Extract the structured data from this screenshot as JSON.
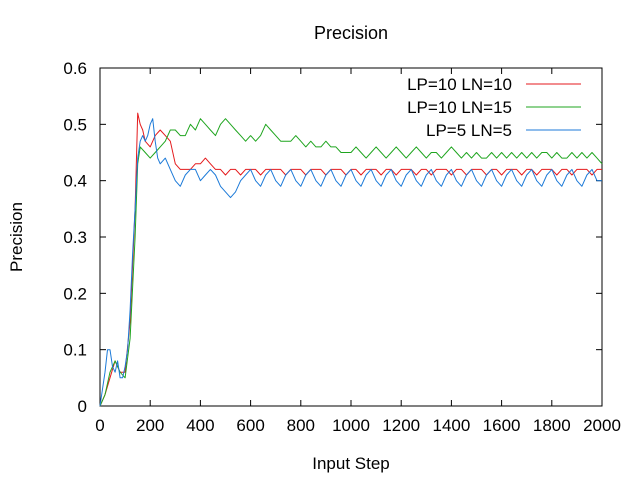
{
  "chart_data": {
    "type": "line",
    "title": "Precision",
    "xlabel": "Input Step",
    "ylabel": "Precision",
    "xlim": [
      0,
      2000
    ],
    "ylim": [
      0,
      0.6
    ],
    "xticks": [
      0,
      200,
      400,
      600,
      800,
      1000,
      1200,
      1400,
      1600,
      1800,
      2000
    ],
    "yticks": [
      0,
      0.1,
      0.2,
      0.3,
      0.4,
      0.5,
      0.6
    ],
    "ytick_labels": [
      "0",
      "0.1",
      "0.2",
      "0.3",
      "0.4",
      "0.5",
      "0.6"
    ],
    "grid": false,
    "legend_position": "top-right",
    "series": [
      {
        "name": "LP=10 LN=10",
        "color": "#e41a1c",
        "points": [
          [
            0,
            0
          ],
          [
            10,
            0.01
          ],
          [
            20,
            0.02
          ],
          [
            40,
            0.05
          ],
          [
            60,
            0.08
          ],
          [
            80,
            0.06
          ],
          [
            100,
            0.06
          ],
          [
            120,
            0.15
          ],
          [
            140,
            0.35
          ],
          [
            150,
            0.52
          ],
          [
            160,
            0.5
          ],
          [
            170,
            0.49
          ],
          [
            180,
            0.47
          ],
          [
            200,
            0.46
          ],
          [
            220,
            0.48
          ],
          [
            240,
            0.49
          ],
          [
            260,
            0.48
          ],
          [
            280,
            0.47
          ],
          [
            300,
            0.43
          ],
          [
            320,
            0.42
          ],
          [
            340,
            0.42
          ],
          [
            360,
            0.42
          ],
          [
            380,
            0.43
          ],
          [
            400,
            0.43
          ],
          [
            420,
            0.44
          ],
          [
            440,
            0.43
          ],
          [
            460,
            0.42
          ],
          [
            480,
            0.42
          ],
          [
            500,
            0.41
          ],
          [
            520,
            0.42
          ],
          [
            540,
            0.42
          ],
          [
            560,
            0.41
          ],
          [
            580,
            0.42
          ],
          [
            600,
            0.42
          ],
          [
            620,
            0.42
          ],
          [
            640,
            0.41
          ],
          [
            660,
            0.42
          ],
          [
            680,
            0.42
          ],
          [
            700,
            0.42
          ],
          [
            720,
            0.42
          ],
          [
            740,
            0.41
          ],
          [
            760,
            0.42
          ],
          [
            780,
            0.42
          ],
          [
            800,
            0.42
          ],
          [
            820,
            0.41
          ],
          [
            840,
            0.42
          ],
          [
            860,
            0.42
          ],
          [
            880,
            0.42
          ],
          [
            900,
            0.41
          ],
          [
            920,
            0.42
          ],
          [
            940,
            0.42
          ],
          [
            960,
            0.42
          ],
          [
            980,
            0.41
          ],
          [
            1000,
            0.42
          ],
          [
            1020,
            0.42
          ],
          [
            1040,
            0.41
          ],
          [
            1060,
            0.42
          ],
          [
            1080,
            0.42
          ],
          [
            1100,
            0.42
          ],
          [
            1120,
            0.41
          ],
          [
            1140,
            0.42
          ],
          [
            1160,
            0.42
          ],
          [
            1180,
            0.41
          ],
          [
            1200,
            0.42
          ],
          [
            1220,
            0.42
          ],
          [
            1240,
            0.42
          ],
          [
            1260,
            0.41
          ],
          [
            1280,
            0.42
          ],
          [
            1300,
            0.42
          ],
          [
            1320,
            0.41
          ],
          [
            1340,
            0.42
          ],
          [
            1360,
            0.42
          ],
          [
            1380,
            0.42
          ],
          [
            1400,
            0.41
          ],
          [
            1420,
            0.42
          ],
          [
            1440,
            0.42
          ],
          [
            1460,
            0.41
          ],
          [
            1480,
            0.42
          ],
          [
            1500,
            0.42
          ],
          [
            1520,
            0.42
          ],
          [
            1540,
            0.41
          ],
          [
            1560,
            0.42
          ],
          [
            1580,
            0.42
          ],
          [
            1600,
            0.41
          ],
          [
            1620,
            0.42
          ],
          [
            1640,
            0.42
          ],
          [
            1660,
            0.42
          ],
          [
            1680,
            0.41
          ],
          [
            1700,
            0.42
          ],
          [
            1720,
            0.42
          ],
          [
            1740,
            0.41
          ],
          [
            1760,
            0.42
          ],
          [
            1780,
            0.42
          ],
          [
            1800,
            0.42
          ],
          [
            1820,
            0.41
          ],
          [
            1840,
            0.42
          ],
          [
            1860,
            0.42
          ],
          [
            1880,
            0.41
          ],
          [
            1900,
            0.42
          ],
          [
            1920,
            0.42
          ],
          [
            1940,
            0.42
          ],
          [
            1960,
            0.41
          ],
          [
            1980,
            0.42
          ],
          [
            2000,
            0.42
          ]
        ]
      },
      {
        "name": "LP=10 LN=15",
        "color": "#1fa51f",
        "points": [
          [
            0,
            0
          ],
          [
            10,
            0.01
          ],
          [
            20,
            0.02
          ],
          [
            40,
            0.06
          ],
          [
            60,
            0.08
          ],
          [
            80,
            0.06
          ],
          [
            100,
            0.05
          ],
          [
            120,
            0.12
          ],
          [
            140,
            0.3
          ],
          [
            150,
            0.43
          ],
          [
            160,
            0.46
          ],
          [
            180,
            0.45
          ],
          [
            200,
            0.44
          ],
          [
            220,
            0.45
          ],
          [
            240,
            0.46
          ],
          [
            260,
            0.47
          ],
          [
            280,
            0.49
          ],
          [
            300,
            0.49
          ],
          [
            320,
            0.48
          ],
          [
            340,
            0.48
          ],
          [
            360,
            0.5
          ],
          [
            380,
            0.49
          ],
          [
            400,
            0.51
          ],
          [
            420,
            0.5
          ],
          [
            440,
            0.49
          ],
          [
            460,
            0.48
          ],
          [
            480,
            0.5
          ],
          [
            500,
            0.51
          ],
          [
            520,
            0.5
          ],
          [
            540,
            0.49
          ],
          [
            560,
            0.48
          ],
          [
            580,
            0.47
          ],
          [
            600,
            0.48
          ],
          [
            620,
            0.47
          ],
          [
            640,
            0.48
          ],
          [
            660,
            0.5
          ],
          [
            680,
            0.49
          ],
          [
            700,
            0.48
          ],
          [
            720,
            0.47
          ],
          [
            740,
            0.47
          ],
          [
            760,
            0.47
          ],
          [
            780,
            0.48
          ],
          [
            800,
            0.47
          ],
          [
            820,
            0.46
          ],
          [
            840,
            0.47
          ],
          [
            860,
            0.46
          ],
          [
            880,
            0.46
          ],
          [
            900,
            0.47
          ],
          [
            920,
            0.46
          ],
          [
            940,
            0.46
          ],
          [
            960,
            0.45
          ],
          [
            980,
            0.45
          ],
          [
            1000,
            0.45
          ],
          [
            1020,
            0.46
          ],
          [
            1040,
            0.45
          ],
          [
            1060,
            0.44
          ],
          [
            1080,
            0.45
          ],
          [
            1100,
            0.46
          ],
          [
            1120,
            0.45
          ],
          [
            1140,
            0.44
          ],
          [
            1160,
            0.45
          ],
          [
            1180,
            0.46
          ],
          [
            1200,
            0.45
          ],
          [
            1220,
            0.44
          ],
          [
            1240,
            0.45
          ],
          [
            1260,
            0.46
          ],
          [
            1280,
            0.45
          ],
          [
            1300,
            0.44
          ],
          [
            1320,
            0.45
          ],
          [
            1340,
            0.45
          ],
          [
            1360,
            0.44
          ],
          [
            1380,
            0.45
          ],
          [
            1400,
            0.46
          ],
          [
            1420,
            0.45
          ],
          [
            1440,
            0.44
          ],
          [
            1460,
            0.45
          ],
          [
            1480,
            0.44
          ],
          [
            1500,
            0.45
          ],
          [
            1520,
            0.44
          ],
          [
            1540,
            0.44
          ],
          [
            1560,
            0.45
          ],
          [
            1580,
            0.44
          ],
          [
            1600,
            0.45
          ],
          [
            1620,
            0.44
          ],
          [
            1640,
            0.45
          ],
          [
            1660,
            0.44
          ],
          [
            1680,
            0.45
          ],
          [
            1700,
            0.44
          ],
          [
            1720,
            0.45
          ],
          [
            1740,
            0.44
          ],
          [
            1760,
            0.45
          ],
          [
            1780,
            0.45
          ],
          [
            1800,
            0.44
          ],
          [
            1820,
            0.45
          ],
          [
            1840,
            0.44
          ],
          [
            1860,
            0.44
          ],
          [
            1880,
            0.45
          ],
          [
            1900,
            0.44
          ],
          [
            1920,
            0.45
          ],
          [
            1940,
            0.44
          ],
          [
            1960,
            0.45
          ],
          [
            1980,
            0.44
          ],
          [
            2000,
            0.43
          ]
        ]
      },
      {
        "name": "LP=5 LN=5",
        "color": "#1c7ad8",
        "points": [
          [
            0,
            0
          ],
          [
            10,
            0.03
          ],
          [
            20,
            0.06
          ],
          [
            30,
            0.1
          ],
          [
            40,
            0.1
          ],
          [
            50,
            0.07
          ],
          [
            60,
            0.06
          ],
          [
            70,
            0.08
          ],
          [
            80,
            0.05
          ],
          [
            90,
            0.05
          ],
          [
            100,
            0.07
          ],
          [
            110,
            0.1
          ],
          [
            120,
            0.17
          ],
          [
            130,
            0.27
          ],
          [
            140,
            0.35
          ],
          [
            150,
            0.44
          ],
          [
            160,
            0.47
          ],
          [
            170,
            0.48
          ],
          [
            180,
            0.47
          ],
          [
            190,
            0.48
          ],
          [
            200,
            0.5
          ],
          [
            210,
            0.51
          ],
          [
            220,
            0.47
          ],
          [
            230,
            0.44
          ],
          [
            240,
            0.43
          ],
          [
            260,
            0.44
          ],
          [
            280,
            0.42
          ],
          [
            300,
            0.4
          ],
          [
            320,
            0.39
          ],
          [
            340,
            0.41
          ],
          [
            360,
            0.42
          ],
          [
            380,
            0.42
          ],
          [
            400,
            0.4
          ],
          [
            420,
            0.41
          ],
          [
            440,
            0.42
          ],
          [
            460,
            0.41
          ],
          [
            480,
            0.39
          ],
          [
            500,
            0.38
          ],
          [
            520,
            0.37
          ],
          [
            540,
            0.38
          ],
          [
            560,
            0.4
          ],
          [
            580,
            0.41
          ],
          [
            600,
            0.42
          ],
          [
            620,
            0.4
          ],
          [
            640,
            0.39
          ],
          [
            660,
            0.41
          ],
          [
            680,
            0.42
          ],
          [
            700,
            0.4
          ],
          [
            720,
            0.39
          ],
          [
            740,
            0.41
          ],
          [
            760,
            0.42
          ],
          [
            780,
            0.4
          ],
          [
            800,
            0.39
          ],
          [
            820,
            0.41
          ],
          [
            840,
            0.42
          ],
          [
            860,
            0.4
          ],
          [
            880,
            0.39
          ],
          [
            900,
            0.41
          ],
          [
            920,
            0.42
          ],
          [
            940,
            0.4
          ],
          [
            960,
            0.39
          ],
          [
            980,
            0.41
          ],
          [
            1000,
            0.42
          ],
          [
            1020,
            0.4
          ],
          [
            1040,
            0.39
          ],
          [
            1060,
            0.41
          ],
          [
            1080,
            0.42
          ],
          [
            1100,
            0.4
          ],
          [
            1120,
            0.39
          ],
          [
            1140,
            0.41
          ],
          [
            1160,
            0.42
          ],
          [
            1180,
            0.4
          ],
          [
            1200,
            0.39
          ],
          [
            1220,
            0.41
          ],
          [
            1240,
            0.42
          ],
          [
            1260,
            0.4
          ],
          [
            1280,
            0.39
          ],
          [
            1300,
            0.41
          ],
          [
            1320,
            0.42
          ],
          [
            1340,
            0.4
          ],
          [
            1360,
            0.39
          ],
          [
            1380,
            0.41
          ],
          [
            1400,
            0.42
          ],
          [
            1420,
            0.4
          ],
          [
            1440,
            0.39
          ],
          [
            1460,
            0.41
          ],
          [
            1480,
            0.42
          ],
          [
            1500,
            0.4
          ],
          [
            1520,
            0.39
          ],
          [
            1540,
            0.41
          ],
          [
            1560,
            0.42
          ],
          [
            1580,
            0.4
          ],
          [
            1600,
            0.39
          ],
          [
            1620,
            0.41
          ],
          [
            1640,
            0.42
          ],
          [
            1660,
            0.4
          ],
          [
            1680,
            0.39
          ],
          [
            1700,
            0.41
          ],
          [
            1720,
            0.42
          ],
          [
            1740,
            0.4
          ],
          [
            1760,
            0.39
          ],
          [
            1780,
            0.41
          ],
          [
            1800,
            0.42
          ],
          [
            1820,
            0.4
          ],
          [
            1840,
            0.39
          ],
          [
            1860,
            0.41
          ],
          [
            1880,
            0.42
          ],
          [
            1900,
            0.4
          ],
          [
            1920,
            0.39
          ],
          [
            1940,
            0.41
          ],
          [
            1960,
            0.42
          ],
          [
            1980,
            0.4
          ],
          [
            2000,
            0.4
          ]
        ]
      }
    ]
  }
}
